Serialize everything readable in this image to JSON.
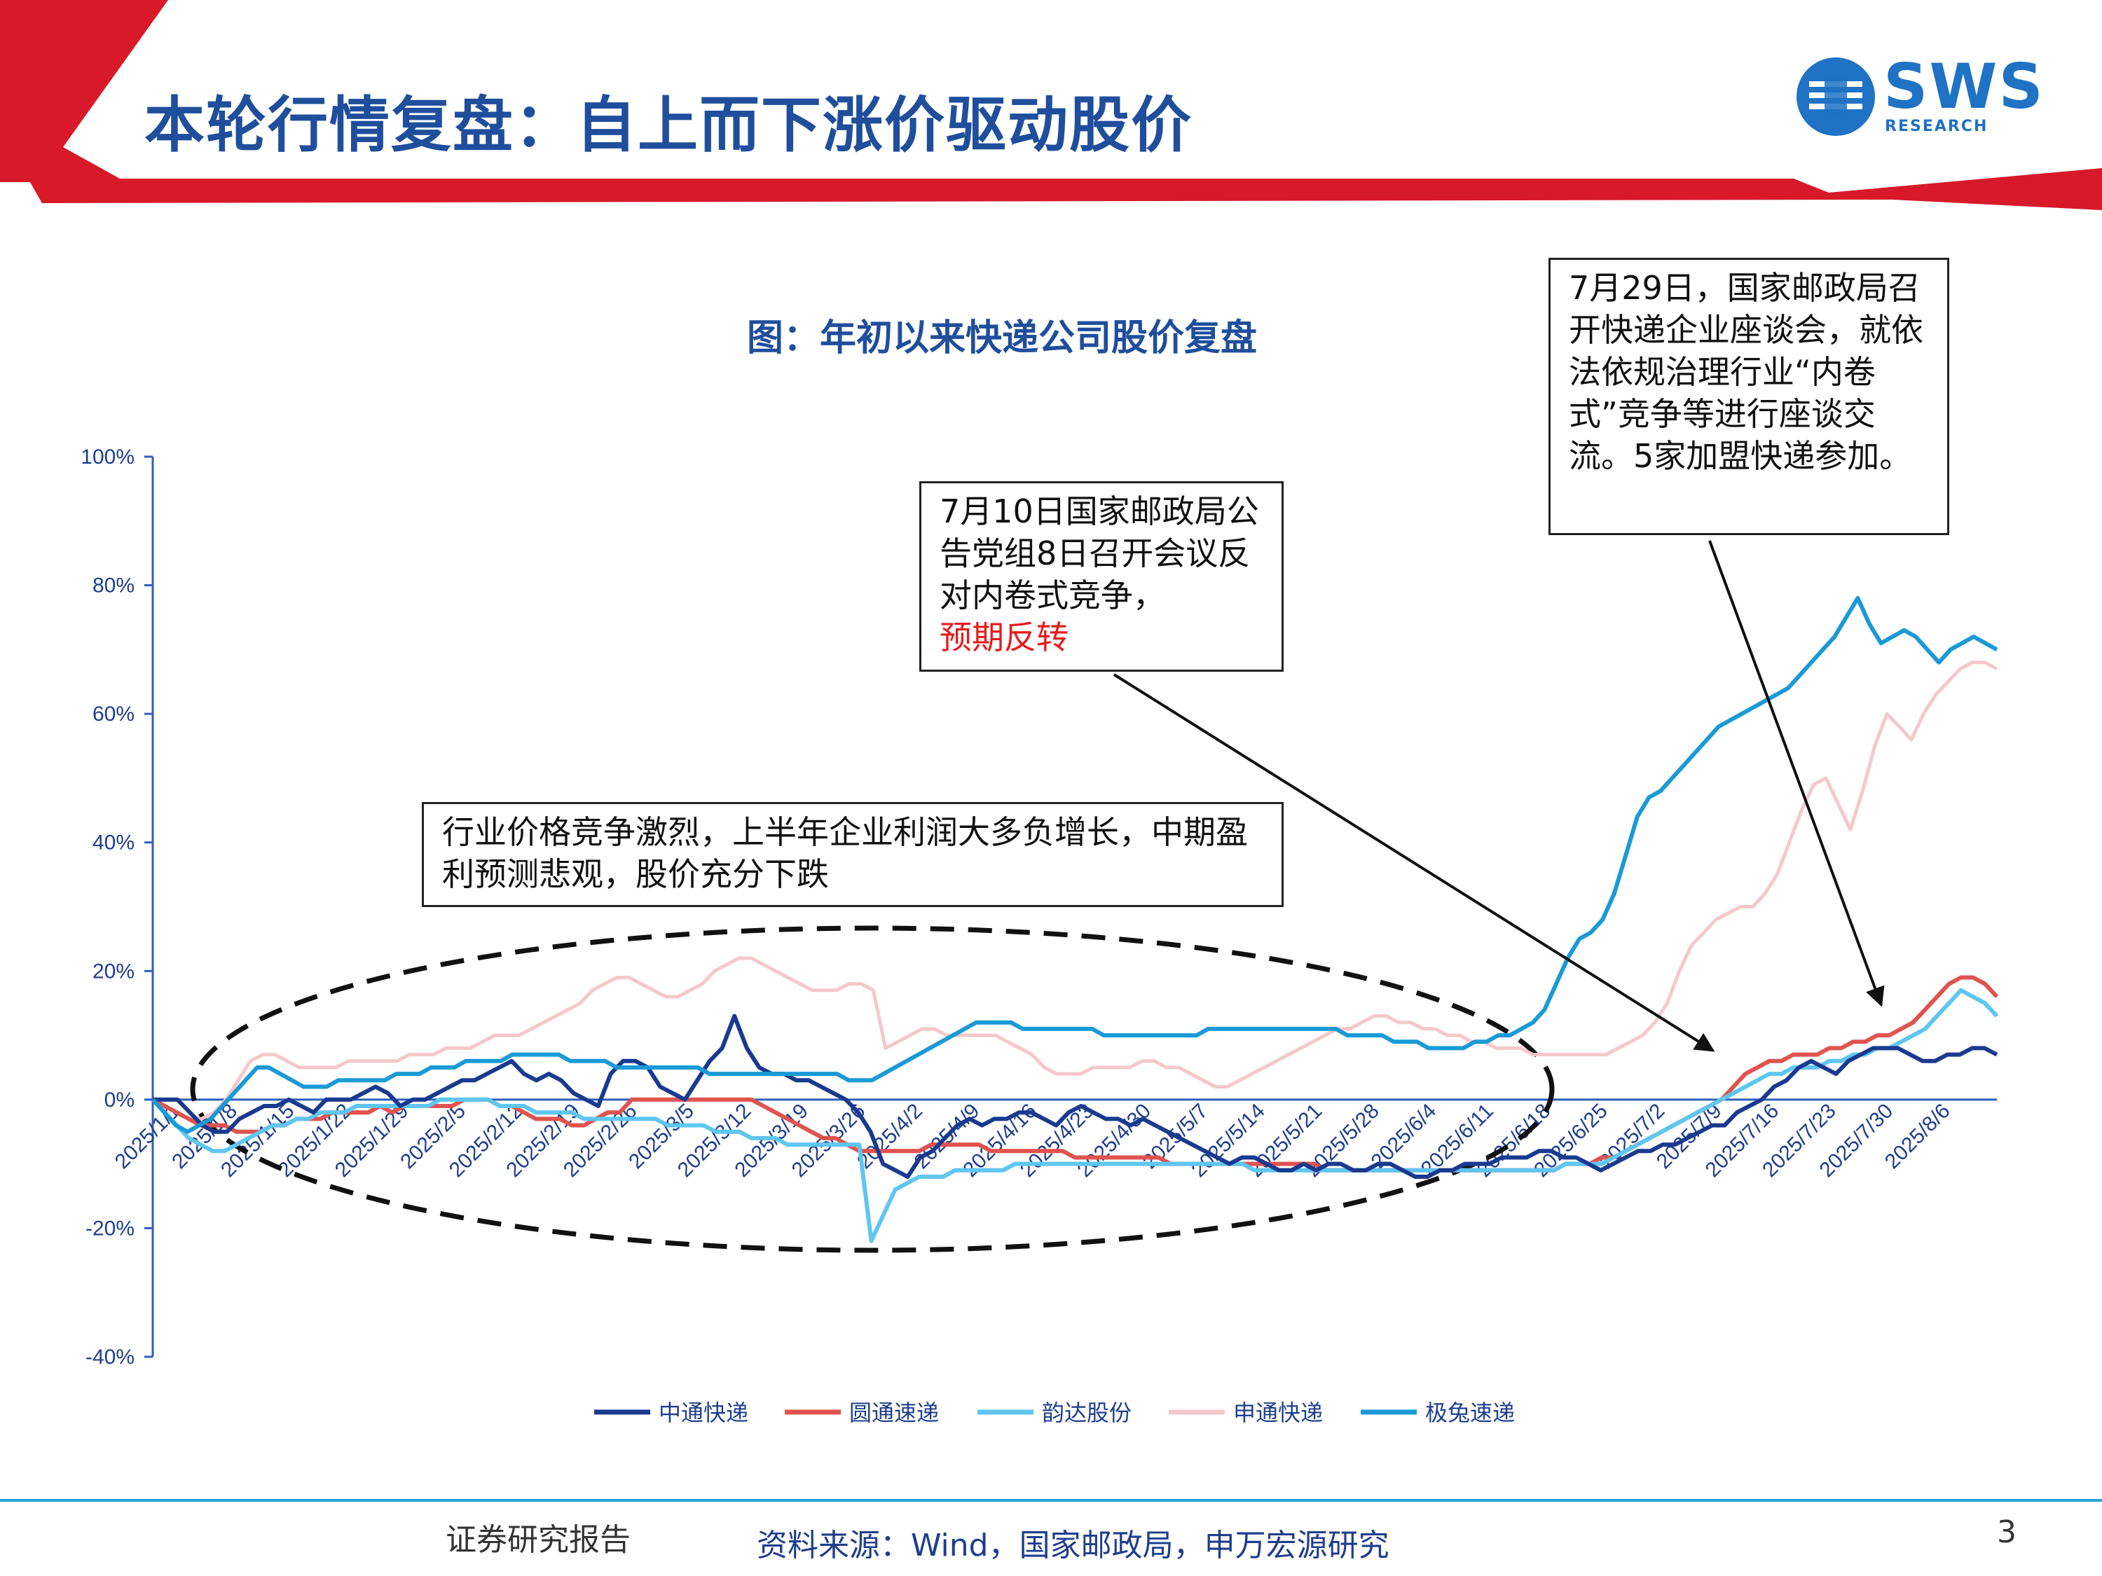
{
  "slide": {
    "title": "本轮行情复盘：自上而下涨价驱动股价",
    "logo_text": "SWS",
    "logo_subtext": "RESEARCH",
    "page_number": "3",
    "footer_report": "证券研究报告",
    "footer_source": "资料来源：Wind，国家邮政局，申万宏源研究"
  },
  "colors": {
    "accent_red": "#d7192a",
    "title_blue": "#1f4e9c",
    "footer_line": "#26a7e0"
  },
  "annotations": {
    "left": "行业价格竞争激烈，上半年企业利润大多负增长，中期盈利预测悲观，股价充分下跌",
    "mid": "7月10日国家邮政局公告党组8日召开会议反对内卷式竞争，",
    "mid_red": "预期反转",
    "right": "7月29日，国家邮政局召开快递企业座谈会，就依法依规治理行业“内卷式”竞争等进行座谈交流。5家加盟快递参加。"
  },
  "chart_data": {
    "type": "line",
    "title": "图：年初以来快递公司股价复盘",
    "ylim": [
      -40,
      100
    ],
    "y_ticks": [
      "100%",
      "80%",
      "60%",
      "40%",
      "20%",
      "0%",
      "-20%",
      "-40%"
    ],
    "y_tick_values": [
      100,
      80,
      60,
      40,
      20,
      0,
      -20,
      -40
    ],
    "x_tick_labels": [
      "2025/1/1",
      "2025/1/8",
      "2025/1/15",
      "2025/1/22",
      "2025/1/29",
      "2025/2/5",
      "2025/2/12",
      "2025/2/19",
      "2025/2/26",
      "2025/3/5",
      "2025/3/12",
      "2025/3/19",
      "2025/3/26",
      "2025/4/2",
      "2025/4/9",
      "2025/4/16",
      "2025/4/23",
      "2025/4/30",
      "2025/5/7",
      "2025/5/14",
      "2025/5/21",
      "2025/5/28",
      "2025/6/4",
      "2025/6/11",
      "2025/6/18",
      "2025/6/25",
      "2025/7/2",
      "2025/7/9",
      "2025/7/16",
      "2025/7/23",
      "2025/7/30",
      "2025/8/6"
    ],
    "legend_position": "bottom",
    "series": [
      {
        "name": "中通快递",
        "color": "#1a3a8f",
        "values": [
          0,
          0,
          0,
          -2,
          -4,
          -5,
          -5,
          -3,
          -2,
          -1,
          -1,
          0,
          -1,
          -2,
          0,
          0,
          0,
          1,
          2,
          1,
          -1,
          0,
          0,
          1,
          2,
          3,
          3,
          4,
          5,
          6,
          4,
          3,
          4,
          3,
          1,
          0,
          -1,
          4,
          6,
          6,
          5,
          2,
          1,
          0,
          3,
          6,
          8,
          13,
          8,
          5,
          4,
          4,
          3,
          3,
          2,
          1,
          0,
          -2,
          -5,
          -10,
          -11,
          -12,
          -9,
          -8,
          -6,
          -4,
          -3,
          -4,
          -3,
          -3,
          -2,
          -2,
          -3,
          -4,
          -2,
          -1,
          -2,
          -3,
          -3,
          -4,
          -3,
          -4,
          -5,
          -6,
          -7,
          -8,
          -9,
          -10,
          -9,
          -9,
          -10,
          -11,
          -11,
          -10,
          -11,
          -10,
          -10,
          -11,
          -11,
          -10,
          -10,
          -11,
          -12,
          -12,
          -11,
          -11,
          -10,
          -10,
          -10,
          -9,
          -9,
          -9,
          -8,
          -8,
          -9,
          -9,
          -10,
          -11,
          -10,
          -9,
          -8,
          -8,
          -7,
          -7,
          -6,
          -5,
          -4,
          -4,
          -2,
          -1,
          0,
          2,
          3,
          5,
          6,
          5,
          4,
          6,
          7,
          8,
          8,
          8,
          7,
          6,
          6,
          7,
          7,
          8,
          8,
          7
        ]
      },
      {
        "name": "圆通速递",
        "color": "#e0534f",
        "values": [
          0,
          -1,
          -2,
          -3,
          -4,
          -4,
          -4,
          -5,
          -5,
          -5,
          -4,
          -4,
          -3,
          -3,
          -3,
          -2,
          -2,
          -2,
          -2,
          -1,
          -2,
          -1,
          -1,
          -1,
          -1,
          -1,
          0,
          0,
          0,
          -1,
          -1,
          -2,
          -3,
          -3,
          -3,
          -4,
          -4,
          -3,
          -2,
          -2,
          0,
          0,
          0,
          0,
          0,
          0,
          0,
          0,
          0,
          0,
          0,
          -1,
          -2,
          -3,
          -4,
          -5,
          -6,
          -6,
          -7,
          -8,
          -8,
          -8,
          -8,
          -8,
          -8,
          -7,
          -7,
          -7,
          -7,
          -7,
          -8,
          -8,
          -8,
          -8,
          -8,
          -8,
          -8,
          -9,
          -9,
          -9,
          -9,
          -9,
          -9,
          -9,
          -9,
          -10,
          -10,
          -10,
          -10,
          -10,
          -10,
          -10,
          -10,
          -10,
          -10,
          -10,
          -10,
          -10,
          -11,
          -11,
          -11,
          -11,
          -11,
          -11,
          -11,
          -11,
          -11,
          -11,
          -11,
          -11,
          -11,
          -11,
          -11,
          -11,
          -11,
          -11,
          -11,
          -11,
          -10,
          -10,
          -10,
          -9,
          -9,
          -8,
          -7,
          -6,
          -5,
          -4,
          -3,
          -2,
          -1,
          0,
          2,
          4,
          5,
          6,
          6,
          7,
          7,
          7,
          8,
          8,
          9,
          9,
          10,
          10,
          11,
          12,
          14,
          16,
          18,
          19,
          19,
          18,
          16
        ]
      },
      {
        "name": "韵达股份",
        "color": "#5fc6f0",
        "values": [
          0,
          -2,
          -4,
          -6,
          -7,
          -8,
          -8,
          -7,
          -6,
          -5,
          -4,
          -4,
          -3,
          -3,
          -2,
          -2,
          -2,
          -1,
          -1,
          -1,
          -1,
          -1,
          -1,
          -1,
          0,
          0,
          0,
          0,
          0,
          -1,
          -1,
          -1,
          -2,
          -2,
          -2,
          -2,
          -3,
          -3,
          -3,
          -3,
          -3,
          -3,
          -3,
          -4,
          -4,
          -4,
          -4,
          -5,
          -5,
          -5,
          -6,
          -6,
          -6,
          -7,
          -7,
          -7,
          -7,
          -7,
          -7,
          -7,
          -22,
          -18,
          -14,
          -13,
          -12,
          -12,
          -12,
          -11,
          -11,
          -11,
          -11,
          -11,
          -10,
          -10,
          -10,
          -10,
          -10,
          -10,
          -10,
          -10,
          -10,
          -10,
          -10,
          -10,
          -10,
          -10,
          -10,
          -10,
          -10,
          -10,
          -10,
          -10,
          -11,
          -11,
          -11,
          -11,
          -11,
          -11,
          -11,
          -11,
          -11,
          -11,
          -11,
          -11,
          -11,
          -11,
          -11,
          -11,
          -11,
          -11,
          -11,
          -11,
          -11,
          -11,
          -11,
          -11,
          -11,
          -11,
          -10,
          -10,
          -10,
          -10,
          -9,
          -8,
          -7,
          -6,
          -5,
          -4,
          -3,
          -2,
          -1,
          0,
          1,
          2,
          3,
          4,
          4,
          5,
          5,
          5,
          6,
          6,
          7,
          7,
          8,
          8,
          9,
          10,
          11,
          13,
          15,
          17,
          16,
          15,
          13
        ]
      },
      {
        "name": "申通快递",
        "color": "#f5c8cb",
        "values": [
          0,
          -1,
          -2,
          -3,
          -3,
          -2,
          0,
          3,
          6,
          7,
          7,
          6,
          5,
          5,
          5,
          5,
          6,
          6,
          6,
          6,
          6,
          7,
          7,
          7,
          8,
          8,
          8,
          9,
          10,
          10,
          10,
          11,
          12,
          13,
          14,
          15,
          17,
          18,
          19,
          19,
          18,
          17,
          16,
          16,
          17,
          18,
          20,
          21,
          22,
          22,
          21,
          20,
          19,
          18,
          17,
          17,
          17,
          18,
          18,
          17,
          8,
          9,
          10,
          11,
          11,
          10,
          10,
          10,
          10,
          10,
          9,
          8,
          7,
          5,
          4,
          4,
          4,
          5,
          5,
          5,
          5,
          6,
          6,
          5,
          5,
          4,
          3,
          2,
          2,
          3,
          4,
          5,
          6,
          7,
          8,
          9,
          10,
          11,
          11,
          12,
          13,
          13,
          12,
          12,
          11,
          11,
          10,
          10,
          9,
          9,
          8,
          8,
          8,
          7,
          7,
          7,
          7,
          7,
          7,
          7,
          8,
          9,
          10,
          12,
          15,
          20,
          24,
          26,
          28,
          29,
          30,
          30,
          32,
          35,
          40,
          45,
          49,
          50,
          46,
          42,
          48,
          55,
          60,
          58,
          56,
          60,
          63,
          65,
          67,
          68,
          68,
          67
        ]
      },
      {
        "name": "极兔速递",
        "color": "#1a9ad6",
        "values": [
          0,
          -2,
          -4,
          -5,
          -4,
          -3,
          -1,
          1,
          3,
          5,
          5,
          4,
          3,
          2,
          2,
          2,
          3,
          3,
          3,
          3,
          3,
          4,
          4,
          4,
          5,
          5,
          5,
          6,
          6,
          6,
          6,
          7,
          7,
          7,
          7,
          7,
          6,
          6,
          6,
          6,
          5,
          5,
          5,
          5,
          5,
          5,
          5,
          5,
          4,
          4,
          4,
          4,
          4,
          4,
          4,
          4,
          4,
          4,
          4,
          4,
          3,
          3,
          3,
          4,
          5,
          6,
          7,
          8,
          9,
          10,
          11,
          12,
          12,
          12,
          12,
          11,
          11,
          11,
          11,
          11,
          11,
          11,
          10,
          10,
          10,
          10,
          10,
          10,
          10,
          10,
          10,
          11,
          11,
          11,
          11,
          11,
          11,
          11,
          11,
          11,
          11,
          11,
          11,
          10,
          10,
          10,
          10,
          9,
          9,
          9,
          8,
          8,
          8,
          8,
          9,
          9,
          10,
          10,
          11,
          12,
          14,
          18,
          22,
          25,
          26,
          28,
          32,
          38,
          44,
          47,
          48,
          50,
          52,
          54,
          56,
          58,
          59,
          60,
          61,
          62,
          63,
          64,
          66,
          68,
          70,
          72,
          75,
          78,
          74,
          71,
          72,
          73,
          72,
          70,
          68,
          70,
          71,
          72,
          71,
          70
        ]
      }
    ]
  }
}
